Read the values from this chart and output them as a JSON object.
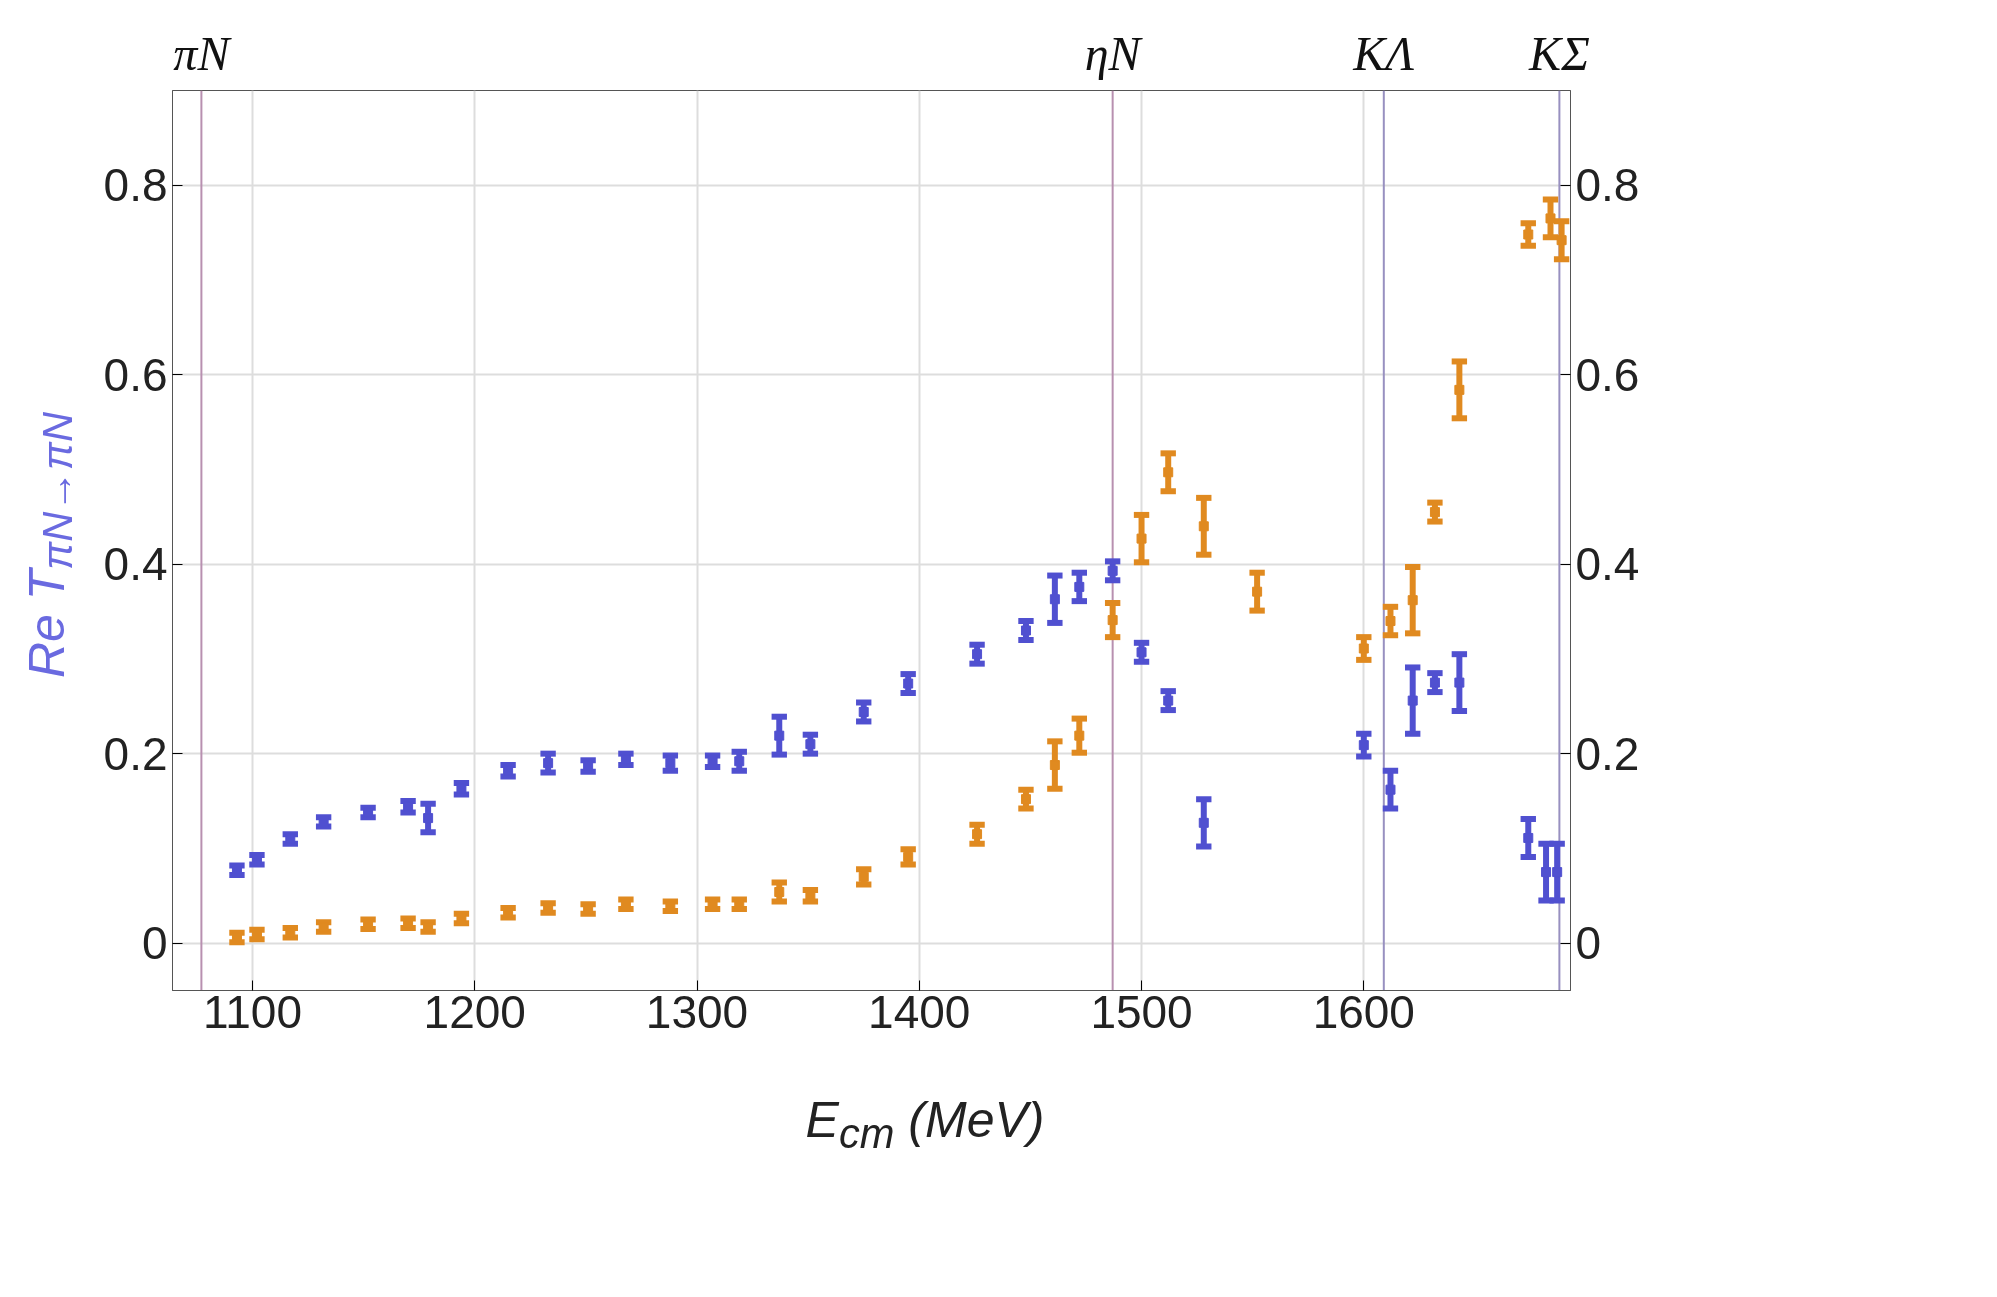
{
  "chart_data": {
    "type": "scatter",
    "xlabel": "E$_{cm}$ (MeV)",
    "ylabel": "Re T$_{πN→πN}$",
    "marker": "square",
    "grid": true,
    "xlim": [
      1064,
      1693
    ],
    "ylim": [
      -0.05,
      0.9
    ],
    "xticks": [
      1100,
      1200,
      1300,
      1400,
      1500,
      1600
    ],
    "yticks": [
      0,
      0.2,
      0.4,
      0.6,
      0.8
    ],
    "y2lim": [
      -0.05,
      0.9
    ],
    "y2ticks": [
      0,
      0.2,
      0.4,
      0.6,
      0.8
    ],
    "ref_lines": [
      {
        "axis": "x",
        "value": 1077,
        "label": "πN",
        "color": "#b890b0"
      },
      {
        "axis": "x",
        "value": 1487,
        "label": "ηN",
        "color": "#b890b0"
      },
      {
        "axis": "x",
        "value": 1609,
        "label": "KΛ",
        "color": "#9890c0"
      },
      {
        "axis": "x",
        "value": 1688,
        "label": "KΣ",
        "color": "#9890c0"
      }
    ],
    "series": [
      {
        "color": "#5050d0",
        "x": [
          1093,
          1102,
          1117,
          1132,
          1152,
          1170,
          1179,
          1194,
          1215,
          1233,
          1251,
          1268,
          1288,
          1307,
          1319,
          1337,
          1351,
          1375,
          1395,
          1426,
          1448,
          1461,
          1472,
          1487,
          1500,
          1512,
          1528,
          1600,
          1612,
          1622,
          1632,
          1643,
          1674,
          1682,
          1687
        ],
        "values": [
          0.077,
          0.088,
          0.11,
          0.128,
          0.138,
          0.144,
          0.132,
          0.163,
          0.182,
          0.19,
          0.187,
          0.194,
          0.19,
          0.192,
          0.192,
          0.219,
          0.21,
          0.244,
          0.274,
          0.305,
          0.33,
          0.363,
          0.376,
          0.393,
          0.307,
          0.256,
          0.127,
          0.209,
          0.162,
          0.256,
          0.275,
          0.275,
          0.111,
          0.075,
          0.075
        ],
        "errors": [
          0.005,
          0.005,
          0.005,
          0.005,
          0.005,
          0.006,
          0.015,
          0.006,
          0.006,
          0.01,
          0.006,
          0.006,
          0.008,
          0.006,
          0.01,
          0.02,
          0.01,
          0.01,
          0.01,
          0.01,
          0.01,
          0.025,
          0.015,
          0.01,
          0.01,
          0.01,
          0.025,
          0.012,
          0.02,
          0.035,
          0.01,
          0.03,
          0.02,
          0.03,
          0.03
        ]
      },
      {
        "color": "#e08a20",
        "x": [
          1093,
          1102,
          1117,
          1132,
          1152,
          1170,
          1179,
          1194,
          1215,
          1233,
          1251,
          1268,
          1288,
          1307,
          1319,
          1337,
          1351,
          1375,
          1395,
          1426,
          1448,
          1461,
          1472,
          1487,
          1500,
          1512,
          1528,
          1552,
          1600,
          1612,
          1622,
          1632,
          1643,
          1674,
          1684,
          1689
        ],
        "values": [
          0.006,
          0.009,
          0.011,
          0.017,
          0.02,
          0.021,
          0.017,
          0.026,
          0.032,
          0.037,
          0.036,
          0.041,
          0.039,
          0.041,
          0.041,
          0.054,
          0.05,
          0.07,
          0.091,
          0.115,
          0.152,
          0.188,
          0.219,
          0.341,
          0.427,
          0.497,
          0.44,
          0.371,
          0.311,
          0.34,
          0.362,
          0.455,
          0.584,
          0.748,
          0.765,
          0.742
        ],
        "errors": [
          0.005,
          0.005,
          0.005,
          0.005,
          0.005,
          0.005,
          0.005,
          0.005,
          0.005,
          0.005,
          0.005,
          0.005,
          0.005,
          0.005,
          0.005,
          0.01,
          0.006,
          0.008,
          0.008,
          0.01,
          0.01,
          0.025,
          0.018,
          0.018,
          0.025,
          0.02,
          0.03,
          0.02,
          0.012,
          0.015,
          0.035,
          0.01,
          0.03,
          0.012,
          0.02,
          0.02
        ]
      }
    ]
  }
}
